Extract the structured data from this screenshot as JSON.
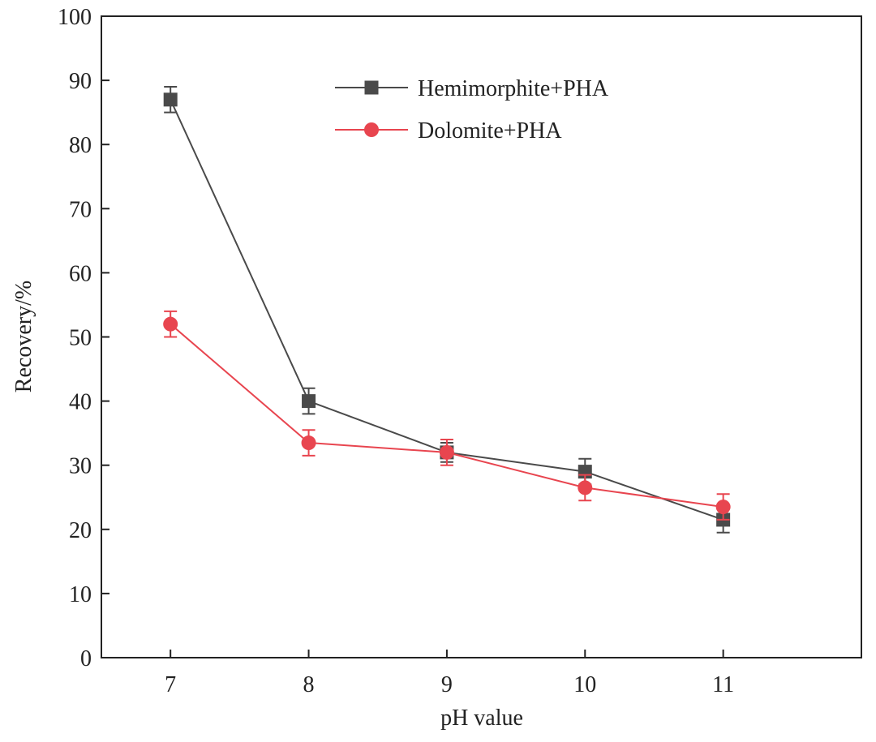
{
  "chart_data": {
    "type": "line",
    "title": "",
    "xlabel": "pH value",
    "ylabel": "Recovery/%",
    "x": [
      7,
      8,
      9,
      10,
      11
    ],
    "xlim": [
      6.5,
      12.0
    ],
    "ylim": [
      0,
      100
    ],
    "xticks": [
      "7",
      "8",
      "9",
      "10",
      "11"
    ],
    "yticks": [
      "0",
      "10",
      "20",
      "30",
      "40",
      "50",
      "60",
      "70",
      "80",
      "90",
      "100"
    ],
    "grid": false,
    "legend_position": "top-center",
    "series": [
      {
        "name": "Hemimorphite+PHA",
        "marker": "square",
        "color": "#4a4a4a",
        "values": [
          87,
          40,
          32,
          29,
          21.5
        ],
        "errors": [
          2,
          2,
          1.5,
          2,
          2
        ]
      },
      {
        "name": "Dolomite+PHA",
        "marker": "circle",
        "color": "#e8454f",
        "values": [
          52,
          33.5,
          32,
          26.5,
          23.5
        ],
        "errors": [
          2,
          2,
          2,
          2,
          2
        ]
      }
    ]
  }
}
